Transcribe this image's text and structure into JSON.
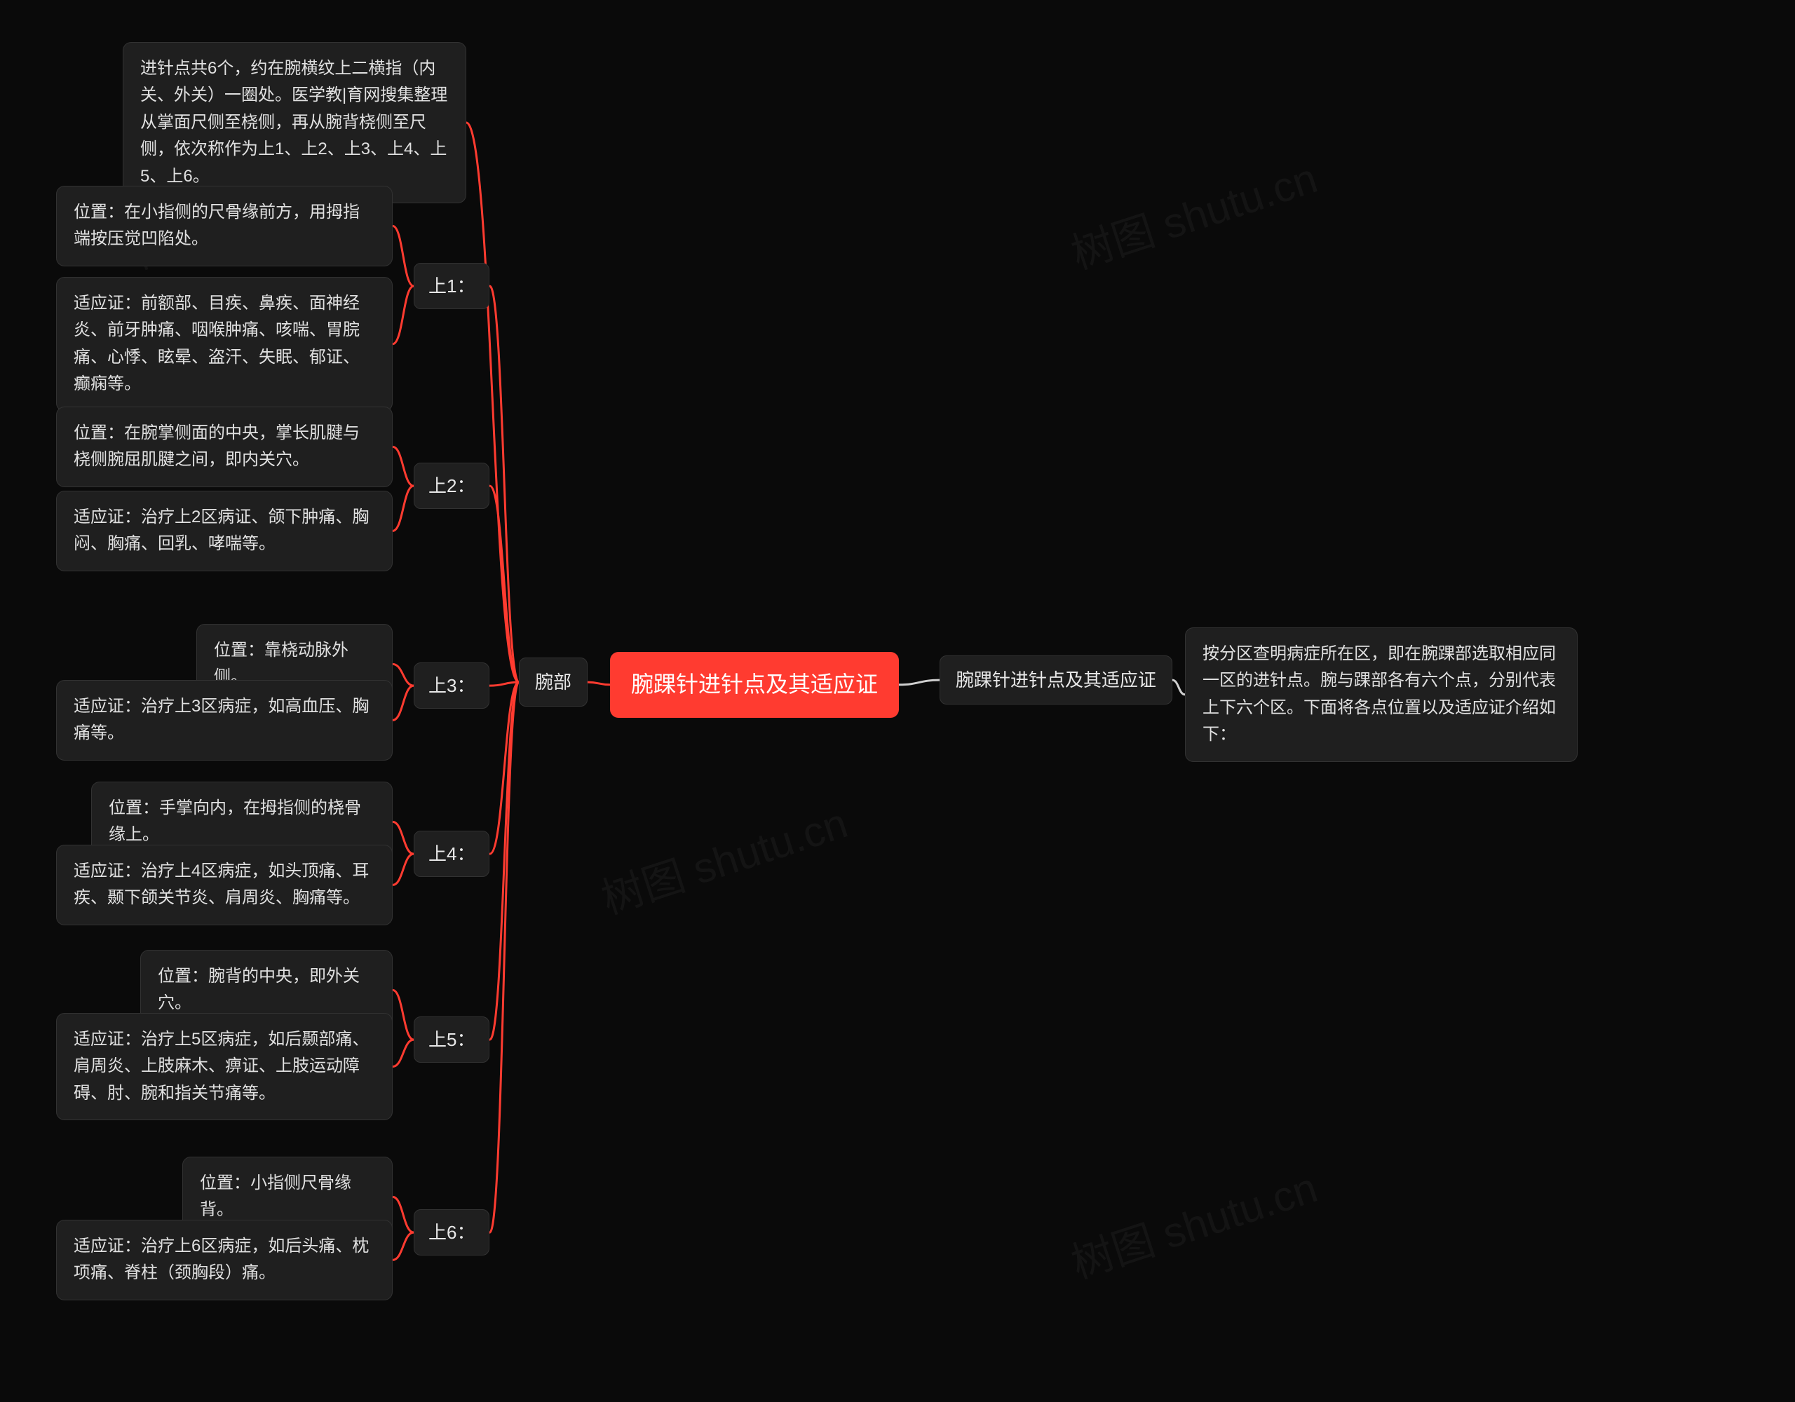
{
  "colors": {
    "background": "#0a0a0a",
    "node_bg": "#1f1f1f",
    "node_border": "#323232",
    "node_text": "#e8e8e8",
    "leaf_text": "#e0e0e0",
    "root_bg": "#ff3b30",
    "root_text": "#ffffff",
    "connector_red": "#ff3b30",
    "connector_gray": "#cfcfcf",
    "connector_stroke_width": 3
  },
  "root": {
    "label": "腕踝针进针点及其适应证"
  },
  "right": {
    "sub_label": "腕踝针进针点及其适应证",
    "leaf": "按分区查明病症所在区，即在腕踝部选取相应同一区的进针点。腕与踝部各有六个点，分别代表上下六个区。下面将各点位置以及适应证介绍如下："
  },
  "left": {
    "sub_label": "腕部",
    "intro_leaf": "进针点共6个，约在腕横纹上二横指（内关、外关）一圈处。医学教|育网搜集整理从掌面尺侧至桡侧，再从腕背桡侧至尺侧，依次称作为上1、上2、上3、上4、上5、上6。",
    "groups": [
      {
        "label": "上1：",
        "leaves": [
          "位置：在小指侧的尺骨缘前方，用拇指端按压觉凹陷处。",
          "适应证：前额部、目疾、鼻疾、面神经炎、前牙肿痛、咽喉肿痛、咳喘、胃脘痛、心悸、眩晕、盗汗、失眠、郁证、癫痫等。"
        ]
      },
      {
        "label": "上2：",
        "leaves": [
          "位置：在腕掌侧面的中央，掌长肌腱与桡侧腕屈肌腱之间，即内关穴。",
          "适应证：治疗上2区病证、颌下肿痛、胸闷、胸痛、回乳、哮喘等。"
        ]
      },
      {
        "label": "上3：",
        "leaves": [
          "位置：靠桡动脉外侧。",
          "适应证：治疗上3区病症，如高血压、胸痛等。"
        ]
      },
      {
        "label": "上4：",
        "leaves": [
          "位置：手掌向内，在拇指侧的桡骨缘上。",
          "适应证：治疗上4区病症，如头顶痛、耳疾、颞下颌关节炎、肩周炎、胸痛等。"
        ]
      },
      {
        "label": "上5：",
        "leaves": [
          "位置：腕背的中央，即外关穴。",
          "适应证：治疗上5区病症，如后颞部痛、肩周炎、上肢麻木、痹证、上肢运动障碍、肘、腕和指关节痛等。"
        ]
      },
      {
        "label": "上6：",
        "leaves": [
          "位置：小指侧尺骨缘背。",
          "适应证：治疗上6区病症，如后头痛、枕项痛、脊柱（颈胸段）痛。"
        ]
      }
    ]
  },
  "watermark_text": "树图 shutu.cn"
}
